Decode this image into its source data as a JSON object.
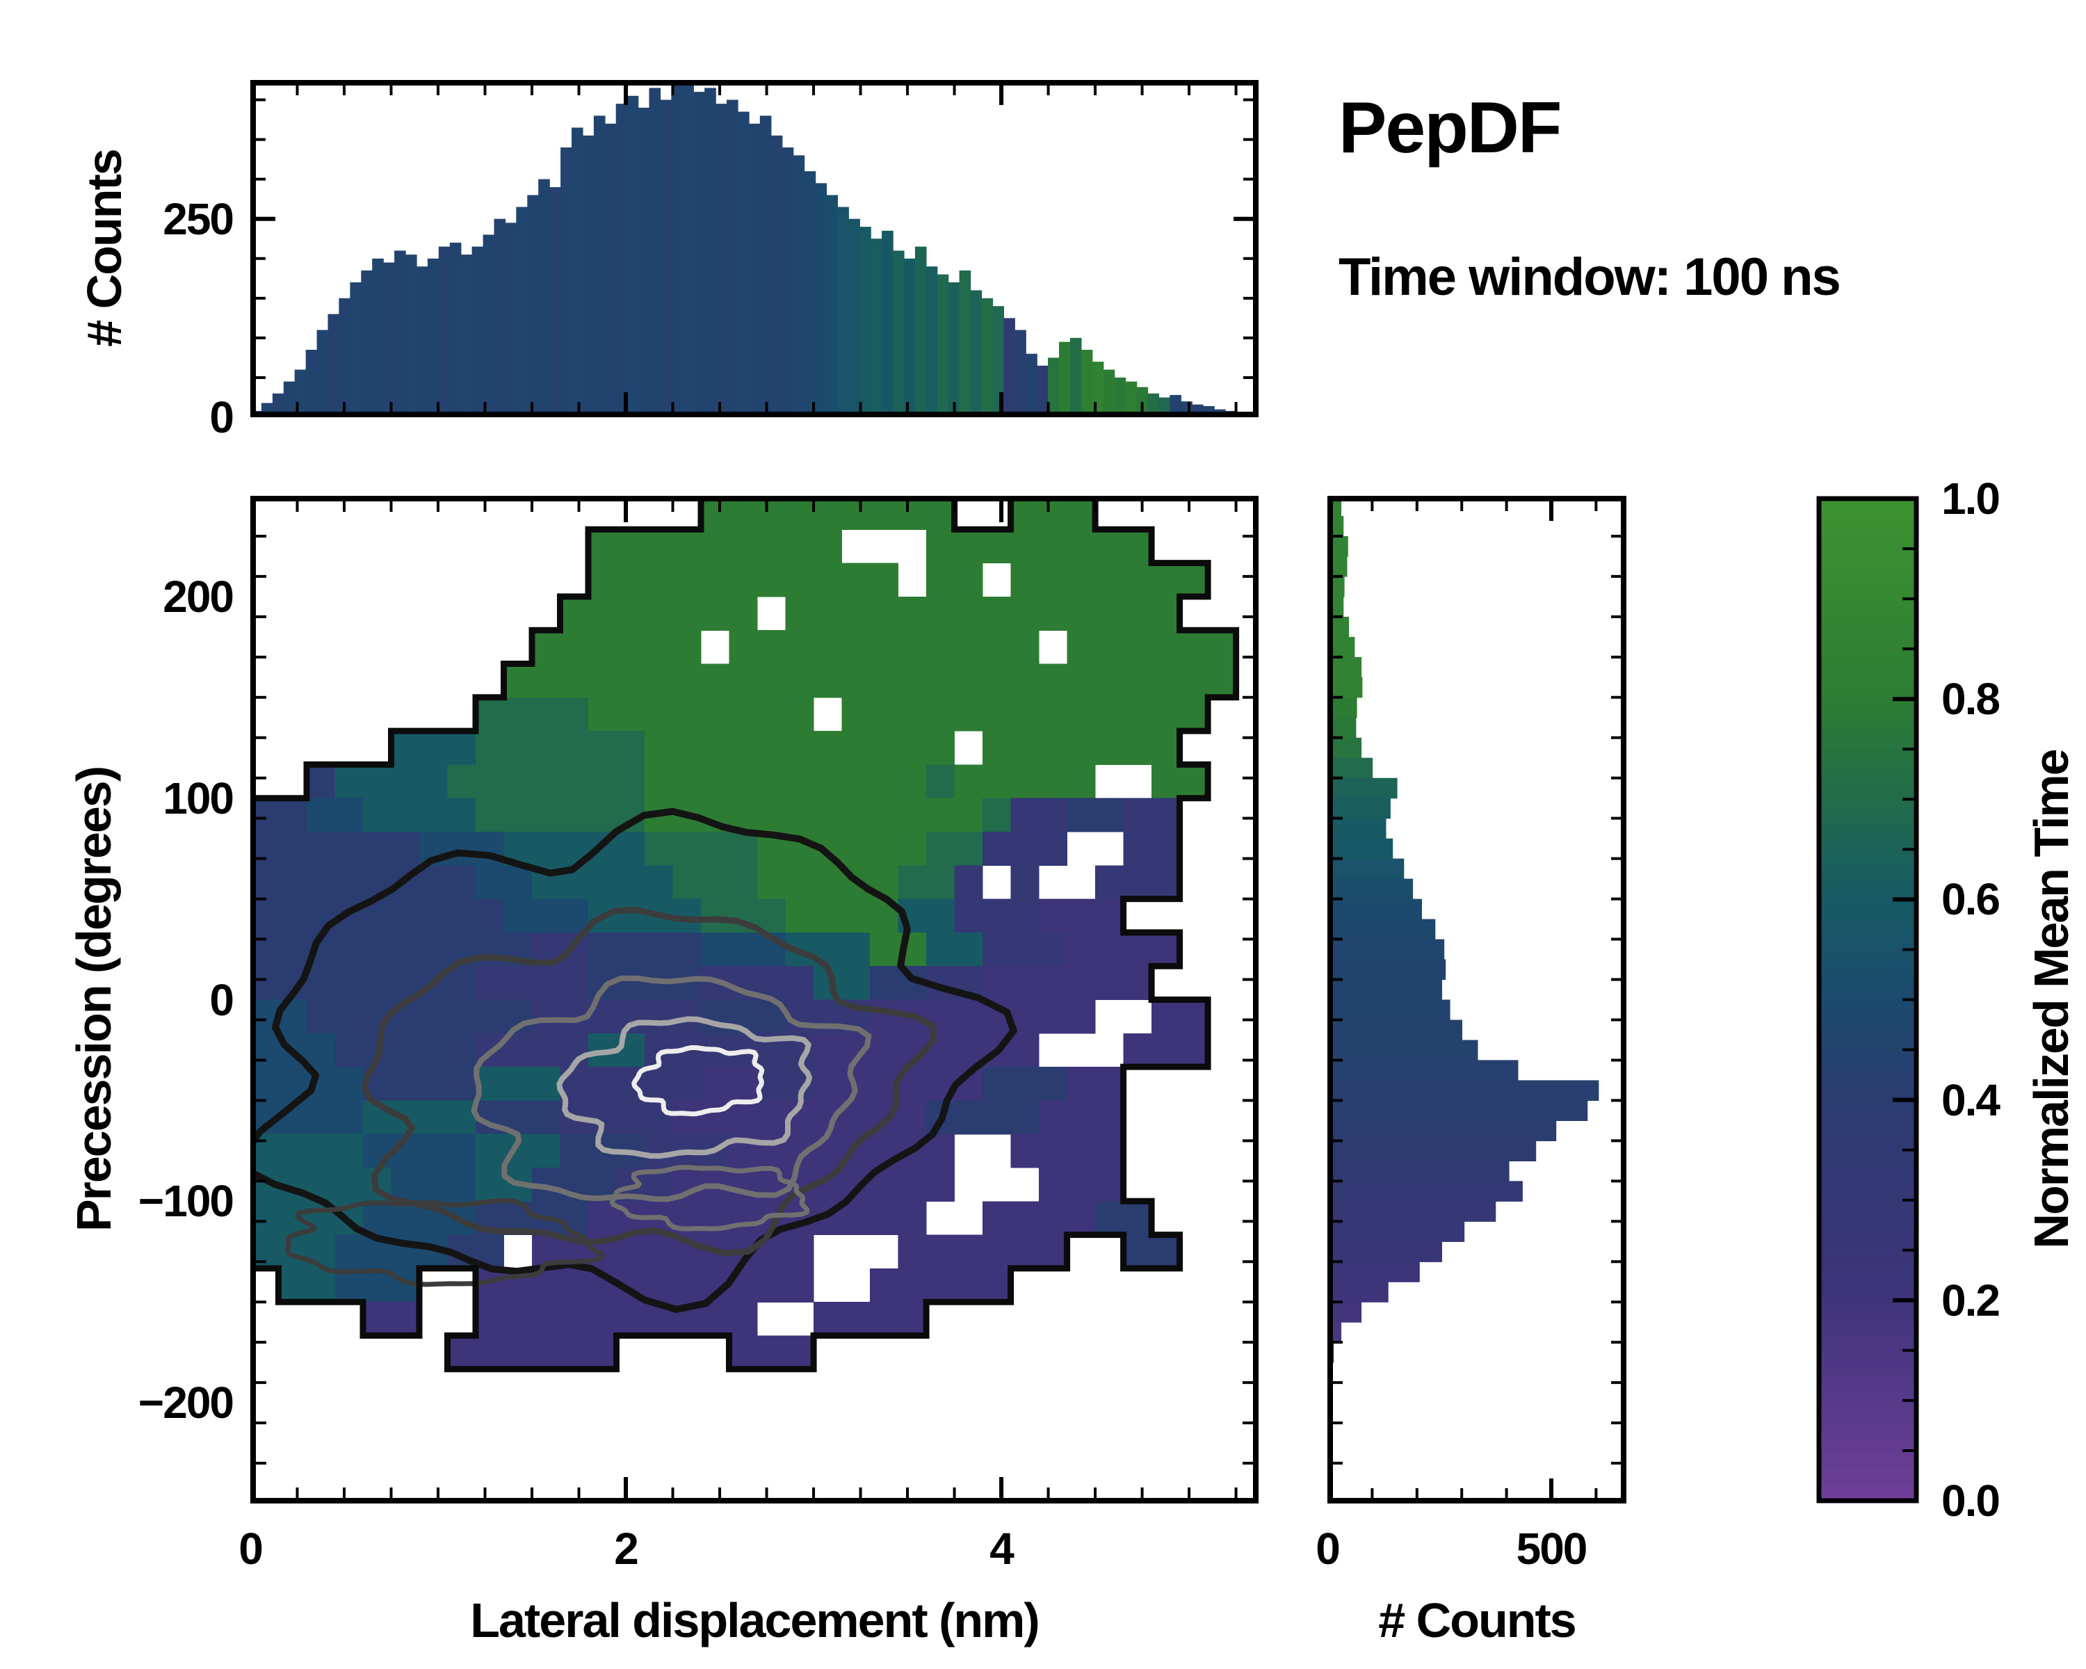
{
  "title": "PepDF",
  "subtitle": "Time window: 100 ns",
  "colors": {
    "background": "#ffffff",
    "frame": "#000000",
    "colormap_stops": [
      [
        0.0,
        "#6e3e98"
      ],
      [
        0.2,
        "#3e347a"
      ],
      [
        0.4,
        "#2b3c70"
      ],
      [
        0.5,
        "#1b4a6e"
      ],
      [
        0.6,
        "#175a64"
      ],
      [
        0.8,
        "#2d7c33"
      ],
      [
        1.0,
        "#3d9230"
      ]
    ]
  },
  "chart_data": [
    {
      "type": "bar",
      "name": "top-histogram",
      "xlabel": "",
      "ylabel": "# Counts",
      "xlim": [
        0,
        5.37
      ],
      "ylim": [
        0,
        425
      ],
      "yticks": [
        0,
        250
      ],
      "y_minor_step": 50,
      "xticks": [
        0,
        2,
        4
      ],
      "x_minor_step": 0.25,
      "bin_start": 0,
      "bin_width": 0.059,
      "values": [
        8,
        18,
        30,
        45,
        60,
        85,
        110,
        130,
        150,
        170,
        185,
        200,
        195,
        210,
        205,
        190,
        200,
        215,
        220,
        205,
        215,
        230,
        250,
        245,
        265,
        280,
        300,
        290,
        340,
        365,
        355,
        380,
        370,
        395,
        405,
        390,
        415,
        400,
        420,
        430,
        410,
        415,
        395,
        400,
        385,
        370,
        380,
        355,
        340,
        330,
        310,
        295,
        280,
        265,
        250,
        240,
        225,
        235,
        210,
        200,
        215,
        190,
        180,
        170,
        185,
        160,
        150,
        140,
        125,
        110,
        80,
        65,
        75,
        95,
        100,
        85,
        70,
        60,
        50,
        45,
        38,
        30,
        25,
        28,
        20,
        16,
        14,
        10,
        8,
        6
      ],
      "tints": [
        0.45,
        0.46,
        0.44,
        0.45,
        0.47,
        0.45,
        0.46,
        0.44,
        0.45,
        0.47,
        0.45,
        0.46,
        0.44,
        0.45,
        0.47,
        0.45,
        0.46,
        0.44,
        0.45,
        0.47,
        0.45,
        0.46,
        0.44,
        0.45,
        0.47,
        0.45,
        0.46,
        0.44,
        0.45,
        0.47,
        0.45,
        0.46,
        0.44,
        0.45,
        0.47,
        0.45,
        0.46,
        0.44,
        0.45,
        0.47,
        0.45,
        0.46,
        0.44,
        0.45,
        0.47,
        0.45,
        0.46,
        0.44,
        0.45,
        0.47,
        0.48,
        0.5,
        0.52,
        0.55,
        0.57,
        0.6,
        0.62,
        0.58,
        0.64,
        0.6,
        0.66,
        0.62,
        0.68,
        0.64,
        0.7,
        0.65,
        0.72,
        0.68,
        0.38,
        0.42,
        0.45,
        0.4,
        0.75,
        0.8,
        0.72,
        0.82,
        0.85,
        0.8,
        0.78,
        0.82,
        0.78,
        0.72,
        0.68,
        0.45,
        0.46,
        0.44,
        0.45,
        0.44,
        0.42,
        0.15
      ]
    },
    {
      "type": "heatmap",
      "name": "main-2d-histogram",
      "xlabel": "Lateral displacement (nm)",
      "ylabel": "Precession (degrees)",
      "value_label": "Normalized Mean Time",
      "xlim": [
        0,
        5.37
      ],
      "ylim": [
        -250,
        250
      ],
      "xticks": [
        0,
        2,
        4
      ],
      "x_minor_step": 0.25,
      "yticks": [
        -200,
        -100,
        0,
        100,
        200
      ],
      "y_minor_step": 20,
      "grid_cols": 36,
      "grid_rows_count": 30,
      "cell_x_nm": 0.15,
      "cell_y_deg": 16.667,
      "grid_legend": "char . = empty bin; digit d = normalized mean time d/10",
      "grid_rows": [
        "................888888888..888......",
        "............888888888...88888888....",
        "............88888888888.88.8888888..",
        "...........8888888.88888888888888...",
        "..........888888.88888888888.888888.",
        ".........88888888888888888888888888.",
        "........777788888888.8888888888888..",
        ".....66677777788888888888.8888888...",
        "..4666677777778888888888788888..88..",
        "445566667777778888888888887334433...",
        "44444455566666777788888877333..33...",
        "44444444556666677788888773 3..333....",
        "4444444445556666777888866333222.....",
        "444444444433444455566688663332222...",
        "44444444333344443333664433222222....",
        "554444444433333344433322222222..22..",
        "5554444433336633333322222222...222..",
        "5555444466633333223322222244422.....",
        "5555666644433332222222224444222.....",
        "6666555566644433322222222..2222.....",
        "6666655566444332222222222...222.....",
        "666655554444222222222222..222244....",
        "666555544.2222222222...222222..44...",
        ".66555..222222222222..22222.........",
        "....22..2222222222..2222............",
        ".......222222....222................",
        "....................................",
        "....................................",
        "....................................",
        "...................................."
      ],
      "contours": {
        "note": "nested density contours around the occupancy peak",
        "rings": [
          {
            "color": "#141414",
            "w": 10,
            "cx": 1.95,
            "cy": -28,
            "rx": 1.9,
            "ry": 112,
            "rot": -12,
            "seed": 1
          },
          {
            "color": "#3c3c3c",
            "w": 9,
            "cx": 2.05,
            "cy": -42,
            "rx": 1.45,
            "ry": 80,
            "rot": -11,
            "seed": 2
          },
          {
            "color": "#707070",
            "w": 8,
            "cx": 2.22,
            "cy": -46,
            "rx": 1.02,
            "ry": 54,
            "rot": -10,
            "seed": 3
          },
          {
            "color": "#a6a6a6",
            "w": 8,
            "cx": 2.33,
            "cy": -44,
            "rx": 0.66,
            "ry": 33,
            "rot": -9,
            "seed": 4
          },
          {
            "color": "#ededed",
            "w": 7,
            "cx": 2.4,
            "cy": -40,
            "rx": 0.34,
            "ry": 16,
            "rot": -9,
            "seed": 5
          },
          {
            "color": "#707070",
            "w": 7,
            "cx": 2.45,
            "cy": -98,
            "rx": 0.5,
            "ry": 15,
            "rot": 0,
            "seed": 6
          },
          {
            "color": "#3c3c3c",
            "w": 7,
            "cx": 1.0,
            "cy": -120,
            "rx": 0.8,
            "ry": 20,
            "rot": 4,
            "seed": 7
          }
        ]
      }
    },
    {
      "type": "bar",
      "orientation": "horizontal",
      "name": "right-histogram",
      "xlabel": "# Counts",
      "ylabel": "",
      "xlim": [
        0,
        667
      ],
      "xticks": [
        0,
        500
      ],
      "x_minor_step": 100,
      "ylim": [
        -250,
        250
      ],
      "y_minor_step": 20,
      "bin_start": 250,
      "bin_width": -10,
      "values": [
        25,
        30,
        40,
        38,
        32,
        30,
        42,
        55,
        70,
        72,
        60,
        58,
        70,
        95,
        150,
        135,
        125,
        140,
        165,
        185,
        205,
        235,
        255,
        258,
        250,
        268,
        295,
        330,
        420,
        600,
        575,
        505,
        460,
        400,
        430,
        370,
        300,
        250,
        200,
        130,
        70,
        25,
        8,
        0,
        0,
        0,
        0,
        0,
        0,
        0
      ],
      "tints": [
        0.85,
        0.85,
        0.85,
        0.85,
        0.85,
        0.85,
        0.85,
        0.85,
        0.85,
        0.85,
        0.8,
        0.78,
        0.75,
        0.7,
        0.65,
        0.62,
        0.6,
        0.58,
        0.55,
        0.52,
        0.5,
        0.48,
        0.47,
        0.46,
        0.45,
        0.45,
        0.44,
        0.44,
        0.43,
        0.42,
        0.42,
        0.4,
        0.38,
        0.36,
        0.33,
        0.3,
        0.28,
        0.25,
        0.22,
        0.2,
        0.18,
        0.15,
        0.13,
        0.13,
        0.13,
        0.13,
        0.13,
        0.13,
        0.13,
        0.13
      ]
    },
    {
      "type": "colorbar",
      "name": "colorbar",
      "label": "Normalized Mean Time",
      "range": [
        0,
        1
      ],
      "tick_labels": [
        "1.0",
        "0.8",
        "0.6",
        "0.4",
        "0.2",
        "0.0"
      ],
      "tick_values": [
        1.0,
        0.8,
        0.6,
        0.4,
        0.2,
        0.0
      ],
      "minor_step": 0.05
    }
  ]
}
